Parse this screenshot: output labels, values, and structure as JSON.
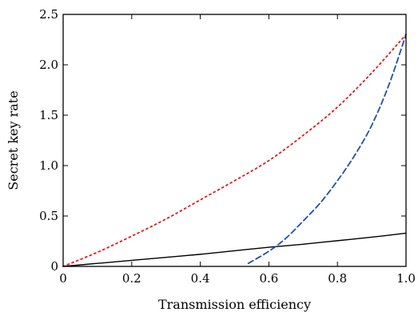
{
  "chart_data": {
    "type": "line",
    "xlabel": "Transmission efficiency",
    "ylabel": "Secret key rate",
    "xlim": [
      0,
      1.0
    ],
    "ylim": [
      0,
      2.5
    ],
    "xticks": [
      "0",
      "0.2",
      "0.4",
      "0.6",
      "0.8",
      "1.0"
    ],
    "yticks": [
      "0",
      "0.5",
      "1.0",
      "1.5",
      "2.0",
      "2.5"
    ],
    "grid": false,
    "series": [
      {
        "style": "solid",
        "color": "#000000",
        "x": [
          0,
          0.1,
          0.2,
          0.3,
          0.4,
          0.5,
          0.6,
          0.7,
          0.8,
          0.9,
          1.0
        ],
        "y": [
          0,
          0.03,
          0.06,
          0.09,
          0.12,
          0.155,
          0.19,
          0.22,
          0.255,
          0.29,
          0.33
        ]
      },
      {
        "style": "dashed",
        "color": "#1f4fa8",
        "x": [
          0.54,
          0.6,
          0.65,
          0.7,
          0.75,
          0.8,
          0.85,
          0.9,
          0.95,
          1.0
        ],
        "y": [
          0.03,
          0.15,
          0.28,
          0.45,
          0.63,
          0.85,
          1.1,
          1.4,
          1.8,
          2.3
        ]
      },
      {
        "style": "dotted",
        "color": "#e01a1a",
        "x": [
          0,
          0.1,
          0.2,
          0.3,
          0.4,
          0.5,
          0.6,
          0.7,
          0.8,
          0.9,
          1.0
        ],
        "y": [
          0,
          0.14,
          0.3,
          0.47,
          0.66,
          0.85,
          1.05,
          1.3,
          1.58,
          1.92,
          2.3
        ]
      }
    ]
  }
}
